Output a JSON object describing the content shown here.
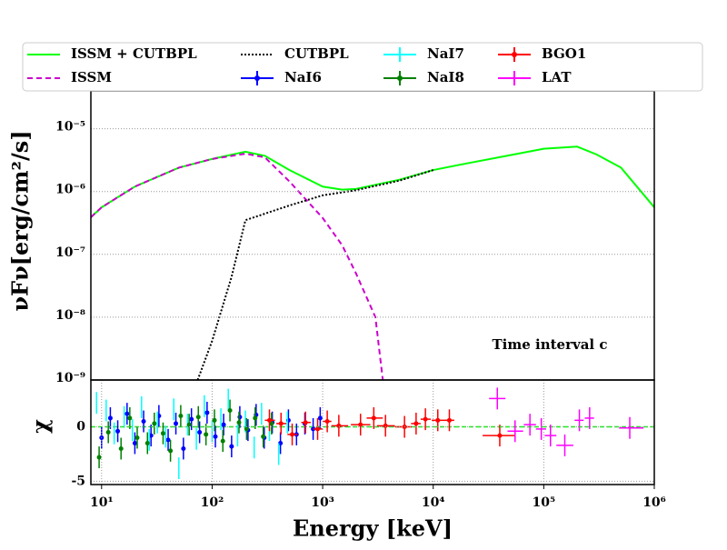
{
  "chart_data": [
    {
      "type": "line",
      "log_x": true,
      "log_y": true,
      "grid": true,
      "legend": "upper center outside",
      "ylabel": "νFν[erg/cm²/s]",
      "annotation": "Time interval c",
      "xlim": [
        8,
        1000000
      ],
      "ylim": [
        1e-09,
        4e-05
      ],
      "yticks": [
        {
          "value": 1e-09,
          "label": "10⁻⁹"
        },
        {
          "value": 1e-08,
          "label": "10⁻⁸"
        },
        {
          "value": 1e-07,
          "label": "10⁻⁷"
        },
        {
          "value": 1e-06,
          "label": "10⁻⁶"
        },
        {
          "value": 1e-05,
          "label": "10⁻⁵"
        }
      ],
      "series": [
        {
          "name": "ISSM + CUTBPL",
          "color": "#00ff00",
          "style": "solid",
          "x": [
            8,
            10,
            20,
            50,
            100,
            200,
            300,
            500,
            1000,
            1500,
            2000,
            5000,
            10000,
            20000,
            50000,
            100000,
            200000,
            300000,
            500000,
            1000000
          ],
          "values": [
            3.9e-07,
            5.6e-07,
            1.2e-06,
            2.4e-06,
            3.3e-06,
            4.3e-06,
            3.7e-06,
            2.2e-06,
            1.2e-06,
            1.07e-06,
            1.1e-06,
            1.55e-06,
            2.2e-06,
            2.8e-06,
            3.8e-06,
            4.8e-06,
            5.2e-06,
            3.9e-06,
            2.4e-06,
            5.6e-07
          ]
        },
        {
          "name": "ISSM",
          "color": "#cc00cc",
          "style": "dashed",
          "x": [
            8,
            10,
            20,
            50,
            100,
            200,
            300,
            500,
            1000,
            1500,
            2000,
            3000,
            3500
          ],
          "values": [
            3.9e-07,
            5.6e-07,
            1.2e-06,
            2.4e-06,
            3.3e-06,
            4e-06,
            3.5e-06,
            1.45e-06,
            3.8e-07,
            1.4e-07,
            5e-08,
            1e-08,
            1e-09
          ]
        },
        {
          "name": "CUTBPL",
          "color": "#000000",
          "style": "dotted",
          "x": [
            74,
            100,
            150,
            200,
            500,
            1000,
            2000,
            5000,
            10000
          ],
          "values": [
            1e-09,
            4.2e-09,
            4.4e-08,
            3.5e-07,
            6e-07,
            8.7e-07,
            1.05e-06,
            1.5e-06,
            2.2e-06
          ]
        }
      ]
    },
    {
      "type": "errorbar",
      "log_x": true,
      "grid": true,
      "xlabel": "Energy [keV]",
      "ylabel": "χ",
      "xlim": [
        8,
        1000000
      ],
      "ylim": [
        -5.3,
        4.3
      ],
      "yticks": [
        -5,
        0
      ],
      "reference": 0,
      "reference_color": "#00ff00",
      "xticks": [
        {
          "value": 10,
          "label": "10¹"
        },
        {
          "value": 100,
          "label": "10²"
        },
        {
          "value": 1000,
          "label": "10³"
        },
        {
          "value": 10000,
          "label": "10⁴"
        },
        {
          "value": 100000,
          "label": "10⁵"
        },
        {
          "value": 1000000,
          "label": "10⁶"
        }
      ],
      "series": [
        {
          "name": "NaI6",
          "color": "#0000ff",
          "marker": "o",
          "yerr": 1,
          "x": [
            10,
            12,
            14,
            17,
            20,
            24,
            28,
            33,
            40,
            47,
            55,
            65,
            77,
            90,
            107,
            127,
            150,
            178,
            211,
            250,
            296,
            350,
            415,
            490,
            580,
            690,
            820,
            950
          ],
          "values": [
            -1.0,
            0.8,
            -0.4,
            1.2,
            -1.5,
            0.5,
            -0.8,
            1.0,
            -1.2,
            0.3,
            -2.0,
            0.7,
            -0.5,
            1.3,
            -0.9,
            0.2,
            -1.8,
            0.9,
            -0.3,
            1.1,
            -1.0,
            0.4,
            -1.5,
            0.6,
            -0.7,
            0.3,
            -0.2,
            0.8
          ]
        },
        {
          "name": "NaI7",
          "color": "#00ffff",
          "marker": "none",
          "yerr": 1,
          "x": [
            9,
            11,
            13,
            16,
            19,
            23,
            27,
            32,
            38,
            45,
            50,
            60,
            72,
            85,
            100,
            120,
            140,
            170,
            200,
            240,
            280,
            330,
            400,
            480
          ],
          "values": [
            2.2,
            1.5,
            -0.6,
            0.9,
            -0.3,
            1.8,
            -1.2,
            0.4,
            -0.9,
            1.6,
            -3.8,
            0.2,
            -1.1,
            1.9,
            -0.4,
            0.7,
            2.5,
            -0.8,
            0.5,
            -1.9,
            1.2,
            -0.3,
            -2.5,
            0.4
          ]
        },
        {
          "name": "NaI8",
          "color": "#008000",
          "marker": "o",
          "yerr": 1,
          "x": [
            9.5,
            11.5,
            15,
            18,
            21,
            26,
            30,
            36,
            42,
            52,
            62,
            75,
            88,
            105,
            125,
            145,
            175,
            205,
            245,
            290,
            345
          ],
          "values": [
            -2.8,
            -0.5,
            -2.0,
            0.8,
            -1.0,
            -1.5,
            0.3,
            -0.6,
            -2.2,
            1.0,
            0.2,
            0.9,
            -0.7,
            0.6,
            -1.3,
            1.5,
            0.4,
            -0.2,
            0.8,
            -0.9,
            0.3
          ]
        },
        {
          "name": "BGO1",
          "color": "#ff0000",
          "marker": "o",
          "yerr": 1,
          "x": [
            330,
            420,
            530,
            700,
            900,
            1100,
            1400,
            2200,
            2900,
            3700,
            5500,
            7000,
            8500,
            11000,
            14000,
            40000
          ],
          "x_lo": [
            300,
            380,
            480,
            640,
            820,
            1000,
            1200,
            1800,
            2500,
            3100,
            4500,
            6300,
            7700,
            9700,
            12500,
            28000
          ],
          "x_hi": [
            370,
            470,
            590,
            780,
            1000,
            1200,
            1700,
            2700,
            3500,
            4500,
            6400,
            7700,
            9500,
            12500,
            15500,
            55000
          ],
          "values": [
            0.6,
            0.3,
            -0.7,
            0.4,
            -0.2,
            0.5,
            0.1,
            0.2,
            0.8,
            0.1,
            0,
            0.3,
            0.7,
            0.6,
            0.6,
            -0.8
          ]
        },
        {
          "name": "LAT",
          "color": "#ff00ff",
          "marker": "none",
          "yerr": 1,
          "x": [
            38000,
            55000,
            75000,
            95000,
            115000,
            155000,
            210000,
            260000,
            600000
          ],
          "x_lo": [
            32000,
            47000,
            66000,
            85000,
            102000,
            130000,
            190000,
            235000,
            480000
          ],
          "x_hi": [
            45000,
            65000,
            85000,
            105000,
            130000,
            185000,
            230000,
            285000,
            800000
          ],
          "values": [
            2.6,
            -0.4,
            0.2,
            -0.2,
            -0.8,
            -1.7,
            0.6,
            0.8,
            -0.1
          ]
        }
      ]
    }
  ]
}
